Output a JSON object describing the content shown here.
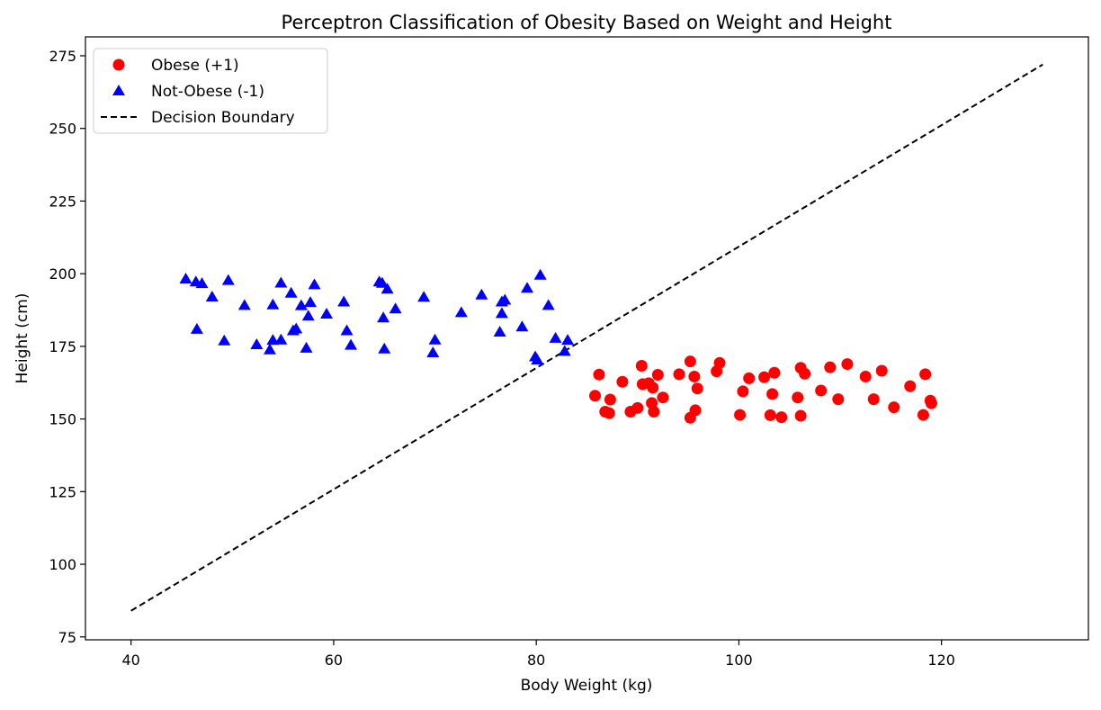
{
  "chart_data": {
    "type": "scatter",
    "title": "Perceptron Classification of Obesity Based on Weight and Height",
    "xlabel": "Body Weight (kg)",
    "ylabel": "Height (cm)",
    "xlim": [
      35.5,
      134.5
    ],
    "ylim": [
      74,
      281.5
    ],
    "xticks": [
      40,
      60,
      80,
      100,
      120
    ],
    "yticks": [
      75,
      100,
      125,
      150,
      175,
      200,
      225,
      250,
      275
    ],
    "grid": false,
    "legend_position": "top-left",
    "series": [
      {
        "name": "Obese (+1)",
        "marker": "circle",
        "color": "#ff0000",
        "points": [
          [
            85.8,
            158
          ],
          [
            86.2,
            165.3
          ],
          [
            86.8,
            152.5
          ],
          [
            87.2,
            152
          ],
          [
            87.3,
            156.7
          ],
          [
            88.5,
            162.8
          ],
          [
            89.3,
            152.5
          ],
          [
            90,
            153.8
          ],
          [
            90.4,
            168.3
          ],
          [
            90.5,
            162
          ],
          [
            91.1,
            162.3
          ],
          [
            91.4,
            155.5
          ],
          [
            91.5,
            160.8
          ],
          [
            91.6,
            152.5
          ],
          [
            92,
            165.2
          ],
          [
            92.5,
            157.4
          ],
          [
            94.1,
            165.4
          ],
          [
            95.2,
            169.8
          ],
          [
            95.2,
            150.4
          ],
          [
            95.6,
            164.6
          ],
          [
            95.7,
            153
          ],
          [
            95.9,
            160.5
          ],
          [
            97.8,
            166.4
          ],
          [
            98.1,
            169.3
          ],
          [
            100.1,
            151.4
          ],
          [
            100.4,
            159.5
          ],
          [
            101,
            164
          ],
          [
            102.5,
            164.4
          ],
          [
            103.1,
            151.3
          ],
          [
            103.3,
            158.6
          ],
          [
            103.5,
            165.9
          ],
          [
            104.2,
            150.6
          ],
          [
            105.8,
            157.4
          ],
          [
            106.1,
            151.1
          ],
          [
            106.1,
            167.6
          ],
          [
            106.5,
            165.6
          ],
          [
            108.1,
            159.8
          ],
          [
            109,
            167.8
          ],
          [
            109.8,
            156.8
          ],
          [
            110.7,
            168.9
          ],
          [
            112.5,
            164.6
          ],
          [
            113.3,
            156.8
          ],
          [
            114.1,
            166.6
          ],
          [
            115.3,
            154
          ],
          [
            116.9,
            161.3
          ],
          [
            118.2,
            151.4
          ],
          [
            118.4,
            165.4
          ],
          [
            118.9,
            156.3
          ],
          [
            119,
            155.4
          ]
        ]
      },
      {
        "name": "Not-Obese (-1)",
        "marker": "triangle",
        "color": "#0000ff",
        "points": [
          [
            45.4,
            198.2
          ],
          [
            46.4,
            197.2
          ],
          [
            46.5,
            180.9
          ],
          [
            47,
            196.6
          ],
          [
            48,
            192
          ],
          [
            49.2,
            176.9
          ],
          [
            49.6,
            197.7
          ],
          [
            51.2,
            189.1
          ],
          [
            52.4,
            175.6
          ],
          [
            53.7,
            173.8
          ],
          [
            54,
            177.1
          ],
          [
            54,
            189.3
          ],
          [
            54.8,
            177.2
          ],
          [
            54.8,
            196.8
          ],
          [
            55.8,
            193.3
          ],
          [
            56,
            180.4
          ],
          [
            56.3,
            181
          ],
          [
            56.8,
            189
          ],
          [
            57.3,
            174.4
          ],
          [
            57.5,
            185.4
          ],
          [
            57.7,
            190.1
          ],
          [
            58.1,
            196.2
          ],
          [
            59.3,
            186.1
          ],
          [
            61,
            190.3
          ],
          [
            61.3,
            180.4
          ],
          [
            61.7,
            175.4
          ],
          [
            64.5,
            197.2
          ],
          [
            64.8,
            196.7
          ],
          [
            64.9,
            184.8
          ],
          [
            65,
            174.1
          ],
          [
            65.3,
            194.7
          ],
          [
            66.1,
            187.9
          ],
          [
            68.9,
            191.9
          ],
          [
            69.8,
            172.8
          ],
          [
            70,
            177.2
          ],
          [
            72.6,
            186.6
          ],
          [
            74.6,
            192.7
          ],
          [
            76.4,
            179.9
          ],
          [
            76.6,
            186.3
          ],
          [
            76.6,
            190.3
          ],
          [
            76.9,
            190.9
          ],
          [
            78.6,
            181.7
          ],
          [
            79.1,
            195
          ],
          [
            79.9,
            171.4
          ],
          [
            80.1,
            170.3
          ],
          [
            80.4,
            199.5
          ],
          [
            81.2,
            189.1
          ],
          [
            81.9,
            177.8
          ],
          [
            82.8,
            173.3
          ],
          [
            83.1,
            177.1
          ]
        ]
      }
    ],
    "decision_boundary": {
      "name": "Decision Boundary",
      "style": "dashed",
      "color": "#000000",
      "x": [
        40,
        130
      ],
      "y": [
        84,
        272
      ]
    }
  }
}
